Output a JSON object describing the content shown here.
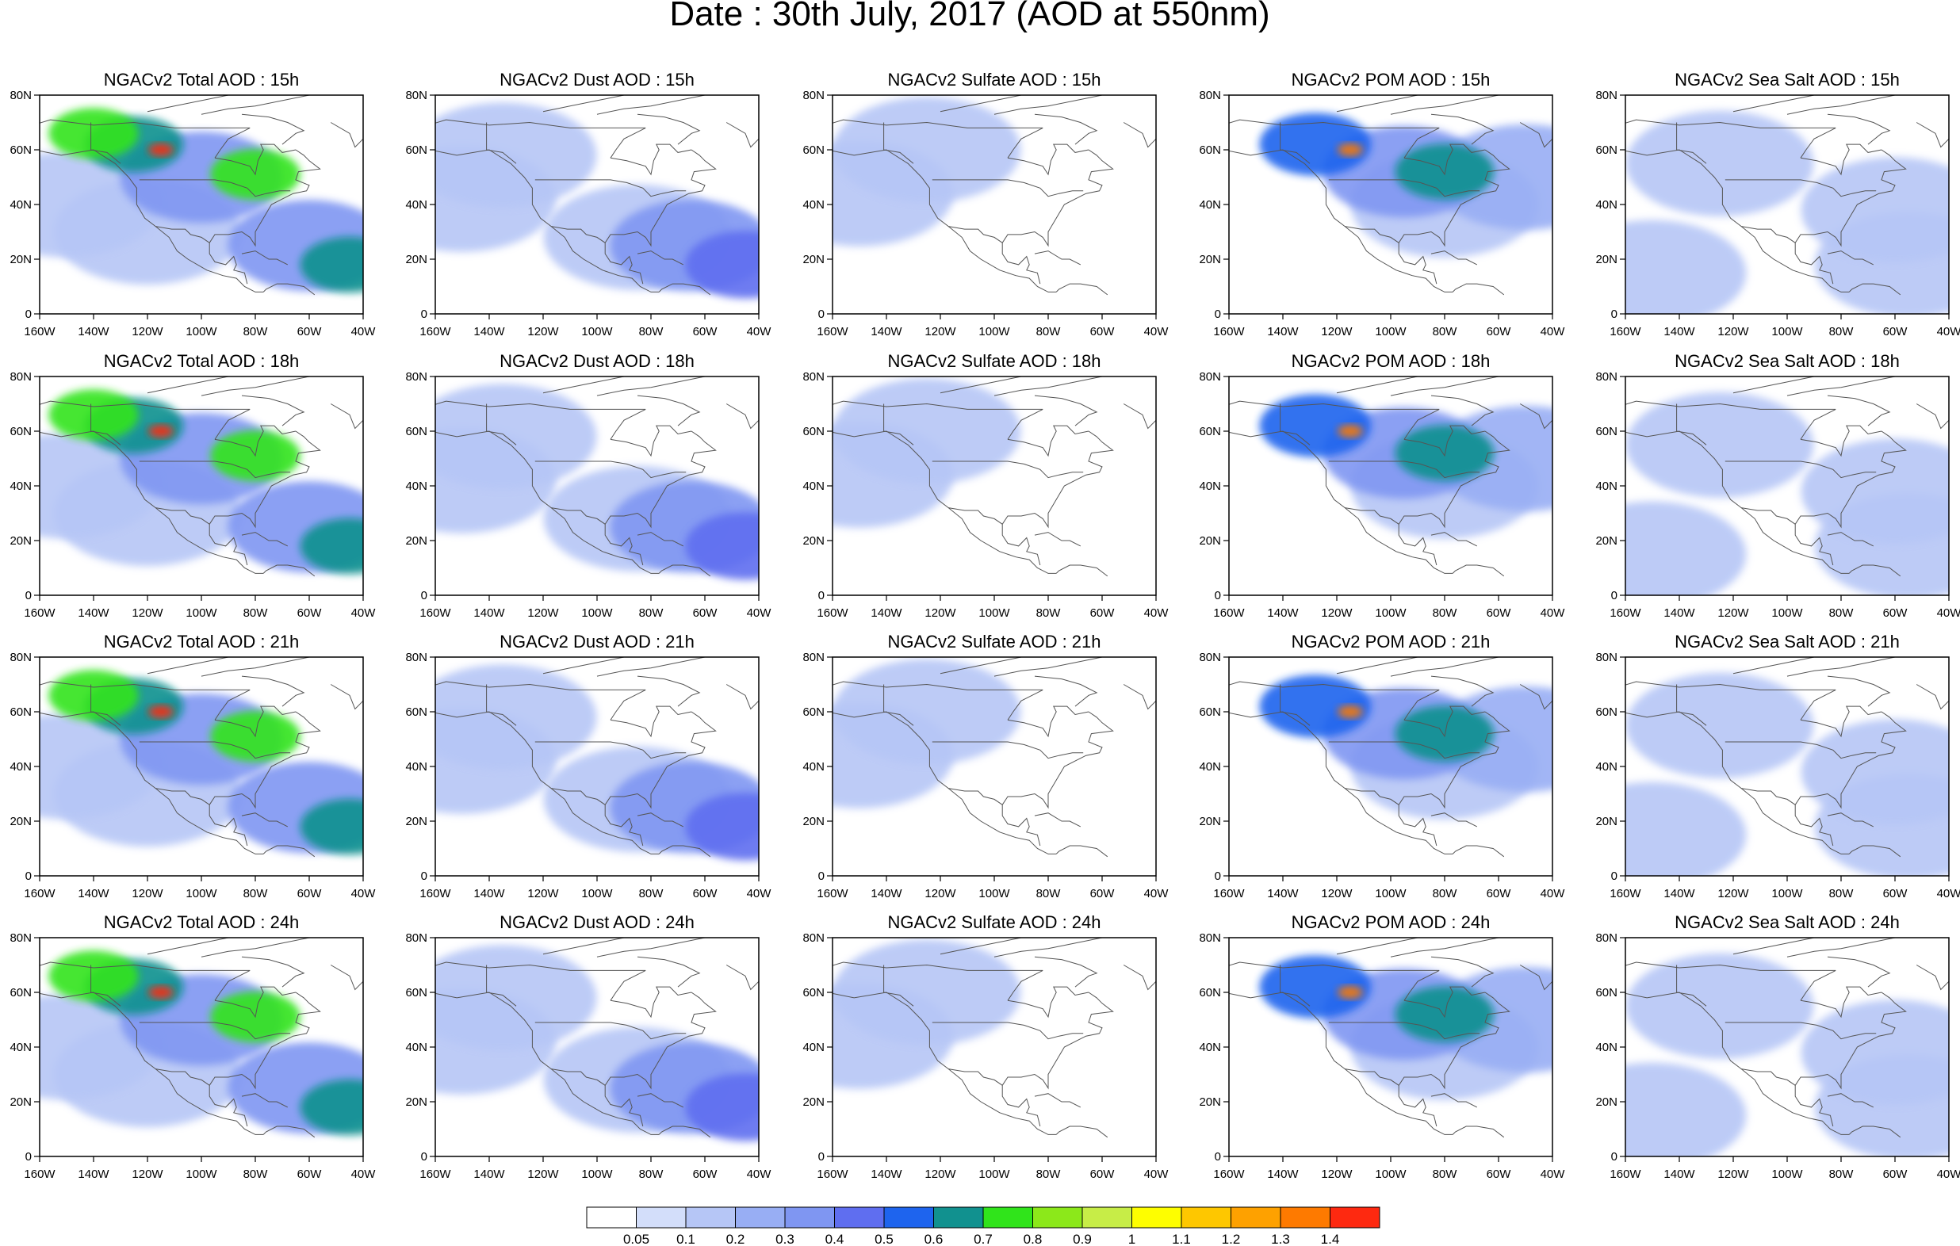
{
  "title": "Date : 30th July, 2017 (AOD at 550nm)",
  "panels": [
    {
      "title": "NGACv2 Total AOD : 15h",
      "species": "total"
    },
    {
      "title": "NGACv2 Dust AOD : 15h",
      "species": "dust"
    },
    {
      "title": "NGACv2 Sulfate AOD : 15h",
      "species": "sulfate"
    },
    {
      "title": "NGACv2 POM AOD : 15h",
      "species": "pom"
    },
    {
      "title": "NGACv2 Sea Salt AOD : 15h",
      "species": "seasalt"
    },
    {
      "title": "NGACv2 Total AOD : 18h",
      "species": "total"
    },
    {
      "title": "NGACv2 Dust AOD : 18h",
      "species": "dust"
    },
    {
      "title": "NGACv2 Sulfate AOD : 18h",
      "species": "sulfate"
    },
    {
      "title": "NGACv2 POM AOD : 18h",
      "species": "pom"
    },
    {
      "title": "NGACv2 Sea Salt AOD : 18h",
      "species": "seasalt"
    },
    {
      "title": "NGACv2 Total AOD : 21h",
      "species": "total"
    },
    {
      "title": "NGACv2 Dust AOD : 21h",
      "species": "dust"
    },
    {
      "title": "NGACv2 Sulfate AOD : 21h",
      "species": "sulfate"
    },
    {
      "title": "NGACv2 POM AOD : 21h",
      "species": "pom"
    },
    {
      "title": "NGACv2 Sea Salt AOD : 21h",
      "species": "seasalt"
    },
    {
      "title": "NGACv2 Total AOD : 24h",
      "species": "total"
    },
    {
      "title": "NGACv2 Dust AOD : 24h",
      "species": "dust"
    },
    {
      "title": "NGACv2 Sulfate AOD : 24h",
      "species": "sulfate"
    },
    {
      "title": "NGACv2 POM AOD : 24h",
      "species": "pom"
    },
    {
      "title": "NGACv2 Sea Salt  AOD : 24h",
      "species": "seasalt"
    }
  ],
  "axes": {
    "lon_ticks": [
      "160W",
      "140W",
      "120W",
      "100W",
      "80W",
      "60W",
      "40W"
    ],
    "lat_ticks": [
      "0",
      "20N",
      "40N",
      "60N",
      "80N"
    ],
    "lon_range": [
      -160,
      -40
    ],
    "lat_range": [
      0,
      80
    ]
  },
  "colorbar": {
    "labels": [
      "0.05",
      "0.1",
      "0.2",
      "0.3",
      "0.4",
      "0.5",
      "0.6",
      "0.7",
      "0.8",
      "0.9",
      "1",
      "1.1",
      "1.2",
      "1.3",
      "1.4"
    ],
    "colors": [
      "#ffffff",
      "#d3defa",
      "#b6c6f6",
      "#98aef4",
      "#7f96f2",
      "#5f6ef0",
      "#1e64ee",
      "#11918f",
      "#30e41b",
      "#8ce81a",
      "#c7ed47",
      "#fefe00",
      "#fec700",
      "#fea100",
      "#fe7a00",
      "#fe2910"
    ]
  },
  "chart_data": {
    "type": "heatmap",
    "title": "Date : 30th July, 2017 (AOD at 550nm)",
    "variable": "AOD at 550nm",
    "times": [
      "15h",
      "18h",
      "21h",
      "24h"
    ],
    "species": [
      "Total",
      "Dust",
      "Sulfate",
      "POM",
      "Sea Salt"
    ],
    "xlim": [
      -160,
      -40
    ],
    "ylim": [
      0,
      80
    ],
    "levels": [
      0.05,
      0.1,
      0.2,
      0.3,
      0.4,
      0.5,
      0.6,
      0.7,
      0.8,
      0.9,
      1,
      1.1,
      1.2,
      1.3,
      1.4
    ],
    "fields": {
      "total": [
        {
          "lon": -115,
          "lat": 60,
          "value": 1.4
        },
        {
          "lon": -125,
          "lat": 62,
          "value": 0.6
        },
        {
          "lon": -80,
          "lat": 51,
          "value": 0.7
        },
        {
          "lon": -45,
          "lat": 18,
          "value": 0.6
        },
        {
          "lon": -140,
          "lat": 66,
          "value": 0.7
        },
        {
          "lon": -100,
          "lat": 50,
          "value": 0.3
        },
        {
          "lon": -60,
          "lat": 25,
          "value": 0.3
        },
        {
          "lon": -120,
          "lat": 30,
          "value": 0.15
        },
        {
          "lon": -150,
          "lat": 40,
          "value": 0.15
        }
      ],
      "dust": [
        {
          "lon": -45,
          "lat": 18,
          "value": 0.45
        },
        {
          "lon": -65,
          "lat": 25,
          "value": 0.3
        },
        {
          "lon": -85,
          "lat": 28,
          "value": 0.15
        },
        {
          "lon": -150,
          "lat": 42,
          "value": 0.1
        },
        {
          "lon": -135,
          "lat": 58,
          "value": 0.1
        }
      ],
      "sulfate": [
        {
          "lon": -125,
          "lat": 60,
          "value": 0.15
        },
        {
          "lon": -150,
          "lat": 44,
          "value": 0.1
        }
      ],
      "pom": [
        {
          "lon": -115,
          "lat": 60,
          "value": 1.3
        },
        {
          "lon": -128,
          "lat": 62,
          "value": 0.5
        },
        {
          "lon": -80,
          "lat": 52,
          "value": 0.6
        },
        {
          "lon": -95,
          "lat": 52,
          "value": 0.3
        },
        {
          "lon": -50,
          "lat": 50,
          "value": 0.25
        },
        {
          "lon": -80,
          "lat": 40,
          "value": 0.15
        }
      ],
      "seasalt": [
        {
          "lon": -60,
          "lat": 38,
          "value": 0.15
        },
        {
          "lon": -150,
          "lat": 15,
          "value": 0.1
        },
        {
          "lon": -55,
          "lat": 18,
          "value": 0.1
        },
        {
          "lon": -125,
          "lat": 55,
          "value": 0.1
        }
      ]
    }
  }
}
